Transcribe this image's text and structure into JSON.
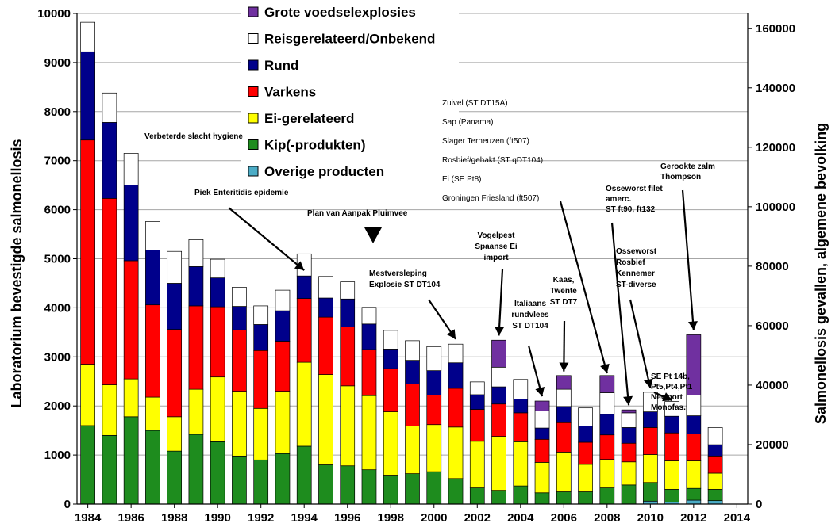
{
  "chart_data": {
    "type": "bar",
    "stacked": true,
    "ylabel": "Laboratorium bevestigde salmonellosis",
    "y2label": "Salmonellosis gevallen, algemene bevolking",
    "ylim": [
      0,
      10000
    ],
    "y2lim": [
      0,
      165000
    ],
    "yticks": [
      "0",
      "1000",
      "2000",
      "3000",
      "4000",
      "5000",
      "6000",
      "7000",
      "8000",
      "9000",
      "10000"
    ],
    "y2ticks": [
      "0",
      "20000",
      "40000",
      "60000",
      "80000",
      "100000",
      "120000",
      "140000",
      "160000"
    ],
    "xticks": [
      "1984",
      "1986",
      "1988",
      "1990",
      "1992",
      "1994",
      "1996",
      "1998",
      "2000",
      "2002",
      "2004",
      "2006",
      "2008",
      "2010",
      "2012",
      "2014"
    ],
    "grid": true,
    "legend_position": "top-center",
    "categories": [
      "1984",
      "1985",
      "1986",
      "1987",
      "1988",
      "1989",
      "1990",
      "1991",
      "1992",
      "1993",
      "1994",
      "1995",
      "1996",
      "1997",
      "1998",
      "1999",
      "2000",
      "2001",
      "2002",
      "2003",
      "2004",
      "2005",
      "2006",
      "2007",
      "2008",
      "2009",
      "2010",
      "2011",
      "2012",
      "2013"
    ],
    "series": [
      {
        "name": "Overige producten",
        "color": "#4bacc6",
        "values": [
          0,
          0,
          0,
          0,
          0,
          0,
          0,
          0,
          0,
          0,
          0,
          0,
          0,
          0,
          0,
          0,
          0,
          0,
          0,
          0,
          0,
          0,
          0,
          0,
          0,
          0,
          60,
          40,
          80,
          70
        ]
      },
      {
        "name": "Kip(-produkten)",
        "color": "#1e8c1e",
        "values": [
          1600,
          1400,
          1780,
          1500,
          1080,
          1420,
          1270,
          980,
          900,
          1030,
          1180,
          800,
          780,
          700,
          590,
          620,
          660,
          520,
          330,
          280,
          370,
          230,
          250,
          250,
          330,
          390,
          380,
          260,
          240,
          230
        ]
      },
      {
        "name": "Ei-gerelateerd",
        "color": "#ffff00",
        "values": [
          1250,
          1030,
          770,
          680,
          700,
          920,
          1320,
          1320,
          1050,
          1270,
          1710,
          1840,
          1630,
          1510,
          1290,
          970,
          960,
          1050,
          950,
          1100,
          900,
          620,
          810,
          560,
          580,
          470,
          570,
          580,
          560,
          330
        ]
      },
      {
        "name": "Varkens",
        "color": "#ff0000",
        "values": [
          4570,
          3800,
          2410,
          1880,
          1780,
          1700,
          1430,
          1250,
          1180,
          1020,
          1300,
          1170,
          1200,
          940,
          880,
          860,
          600,
          790,
          650,
          660,
          590,
          470,
          600,
          450,
          500,
          380,
          550,
          570,
          550,
          350
        ]
      },
      {
        "name": "Rund",
        "color": "#00008b",
        "values": [
          1800,
          1550,
          1540,
          1120,
          940,
          800,
          590,
          480,
          530,
          620,
          460,
          390,
          570,
          520,
          400,
          480,
          500,
          520,
          300,
          350,
          280,
          230,
          330,
          330,
          420,
          320,
          320,
          340,
          370,
          230
        ]
      },
      {
        "name": "Reisgerelateerd/Onbekend",
        "color": "#ffffff",
        "values": [
          600,
          600,
          650,
          580,
          650,
          550,
          380,
          390,
          380,
          420,
          450,
          440,
          350,
          340,
          380,
          400,
          490,
          380,
          260,
          400,
          400,
          350,
          350,
          370,
          440,
          300,
          400,
          300,
          420,
          350
        ]
      },
      {
        "name": "Grote voedselexplosies",
        "color": "#7030a0",
        "values": [
          0,
          0,
          0,
          0,
          0,
          0,
          0,
          0,
          0,
          0,
          0,
          0,
          0,
          0,
          0,
          0,
          0,
          0,
          0,
          550,
          0,
          200,
          280,
          0,
          350,
          60,
          0,
          0,
          1230,
          0
        ]
      }
    ],
    "legend_order": [
      "Grote voedselexplosies",
      "Reisgerelateerd/Onbekend",
      "Rund",
      "Varkens",
      "Ei-gerelateerd",
      "Kip(-produkten)",
      "Overige producten"
    ],
    "annotations": [
      {
        "text": "Verbeterde slacht hygiene",
        "bold": true
      },
      {
        "text": "Piek Enteritidis epidemie",
        "bold": true,
        "arrow_year": 1994,
        "arrow_value": 4700
      },
      {
        "text": "Plan van Aanpak Pluimvee",
        "bold": true,
        "marker_year": 1996
      },
      {
        "text": "Mestversleping\nExplosie ST DT104",
        "bold": true,
        "arrow_year": 2001,
        "arrow_value": 3300
      },
      {
        "text": "Vogelpest\nSpaanse Ei\nimport",
        "bold": true,
        "arrow_year": 2003,
        "arrow_value": 3370
      },
      {
        "text": "Italiaans\nrundvlees\nST DT104",
        "bold": true,
        "arrow_year": 2005,
        "arrow_value": 2130
      },
      {
        "text": "Kaas,\nTwente\nST DT7",
        "bold": true,
        "arrow_year": 2006,
        "arrow_value": 2640
      },
      {
        "text": "Zuivel (ST DT15A)\nSap (Panama)\nSlager Terneuzen (ft507)\nRosbief/gehakt (ST qDT104)\nEi (SE Pt8)\nGroningen Friesland (ft507)",
        "bold": false,
        "arrow_year": 2008,
        "arrow_value": 2600
      },
      {
        "text": "Osseworst filet\namerc.\nST ft90, ft132",
        "bold": true,
        "arrow_year": 2009,
        "arrow_value": 1950
      },
      {
        "text": "Osseworst\nRosbief\nKennemer\nST-diverse",
        "bold": true,
        "arrow_year": 2010,
        "arrow_value": 2300
      },
      {
        "text": "SE Pt 14b,\nPt5,Pt4,Pt1\nNewport\nMonofas.",
        "bold": true,
        "arrow_year": 2011,
        "arrow_value": 2050
      },
      {
        "text": "Gerookte zalm\nThompson",
        "bold": true,
        "arrow_year": 2012,
        "arrow_value": 3480
      }
    ]
  }
}
